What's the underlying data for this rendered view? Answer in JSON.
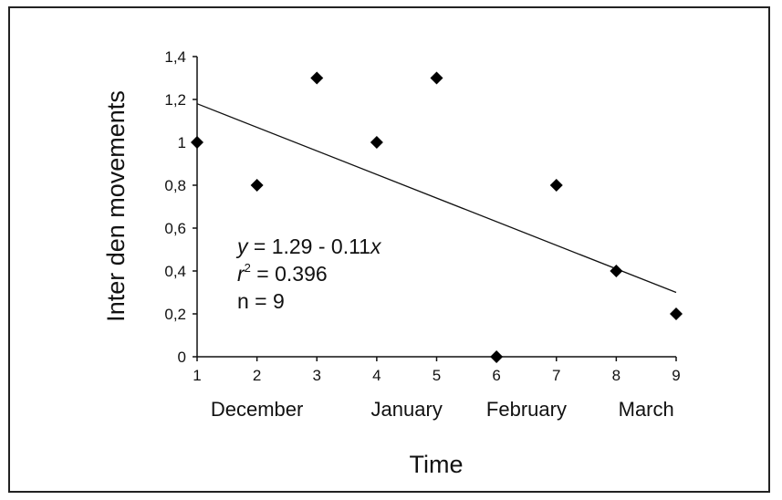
{
  "chart_data": {
    "type": "scatter",
    "x": [
      1,
      2,
      3,
      4,
      5,
      6,
      7,
      8,
      9
    ],
    "y": [
      1.0,
      0.8,
      1.3,
      1.0,
      1.3,
      0.0,
      0.8,
      0.4,
      0.2
    ],
    "xlim": [
      1,
      9
    ],
    "ylim": [
      0,
      1.4
    ],
    "x_ticks": [
      "1",
      "2",
      "3",
      "4",
      "5",
      "6",
      "7",
      "8",
      "9"
    ],
    "y_ticks": [
      "0",
      "0,2",
      "0,4",
      "0,6",
      "0,8",
      "1",
      "1,2",
      "1,4"
    ],
    "y_tick_values": [
      0,
      0.2,
      0.4,
      0.6,
      0.8,
      1.0,
      1.2,
      1.4
    ],
    "months": [
      {
        "label": "December",
        "center_x": 2
      },
      {
        "label": "January",
        "center_x": 4.5
      },
      {
        "label": "February",
        "center_x": 6.5
      },
      {
        "label": "March",
        "center_x": 8.5
      }
    ],
    "xlabel": "Time",
    "ylabel": "Inter den movements",
    "regression": {
      "intercept": 1.29,
      "slope": -0.11
    },
    "annotations": {
      "equation_lhs": "y",
      "equation_rhs": " = 1.29 - 0.11",
      "equation_var": "x",
      "r2_symbol": "r",
      "r2_exp": "2",
      "r2_value": " = 0.396",
      "n_text": "n = 9"
    },
    "grid": false,
    "legend": "none",
    "marker": "diamond",
    "marker_color": "#000000"
  }
}
